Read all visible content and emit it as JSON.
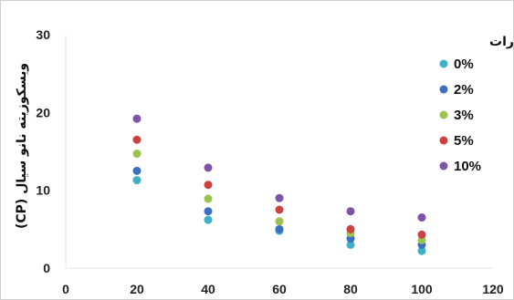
{
  "chart_data": {
    "type": "scatter",
    "ylabel": "ویسکوزیته نانو سیال (CP)",
    "xlabel": "",
    "xlim": [
      0,
      120
    ],
    "ylim": [
      0,
      30
    ],
    "xticks": [
      "0",
      "20",
      "40",
      "60",
      "80",
      "100",
      "120"
    ],
    "yticks": [
      "0",
      "10",
      "20",
      "30"
    ],
    "legend_title": "درصد وزنی نانو ذرات",
    "legend_position": "top-right",
    "x": [
      20,
      40,
      60,
      80,
      100
    ],
    "series": [
      {
        "name": "0%",
        "color": "#3fb0c6",
        "values": [
          11.3,
          6.2,
          4.8,
          3.0,
          2.2
        ]
      },
      {
        "name": "2%",
        "color": "#3c6fbf",
        "values": [
          12.5,
          7.3,
          5.0,
          3.8,
          3.0
        ]
      },
      {
        "name": "3%",
        "color": "#9bc34f",
        "values": [
          14.7,
          8.9,
          6.0,
          4.5,
          3.6
        ]
      },
      {
        "name": "5%",
        "color": "#cc4240",
        "values": [
          16.5,
          10.7,
          7.5,
          5.0,
          4.3
        ]
      },
      {
        "name": "10%",
        "color": "#7d55a8",
        "values": [
          19.2,
          12.9,
          9.0,
          7.3,
          6.5
        ]
      }
    ],
    "grid": false
  }
}
